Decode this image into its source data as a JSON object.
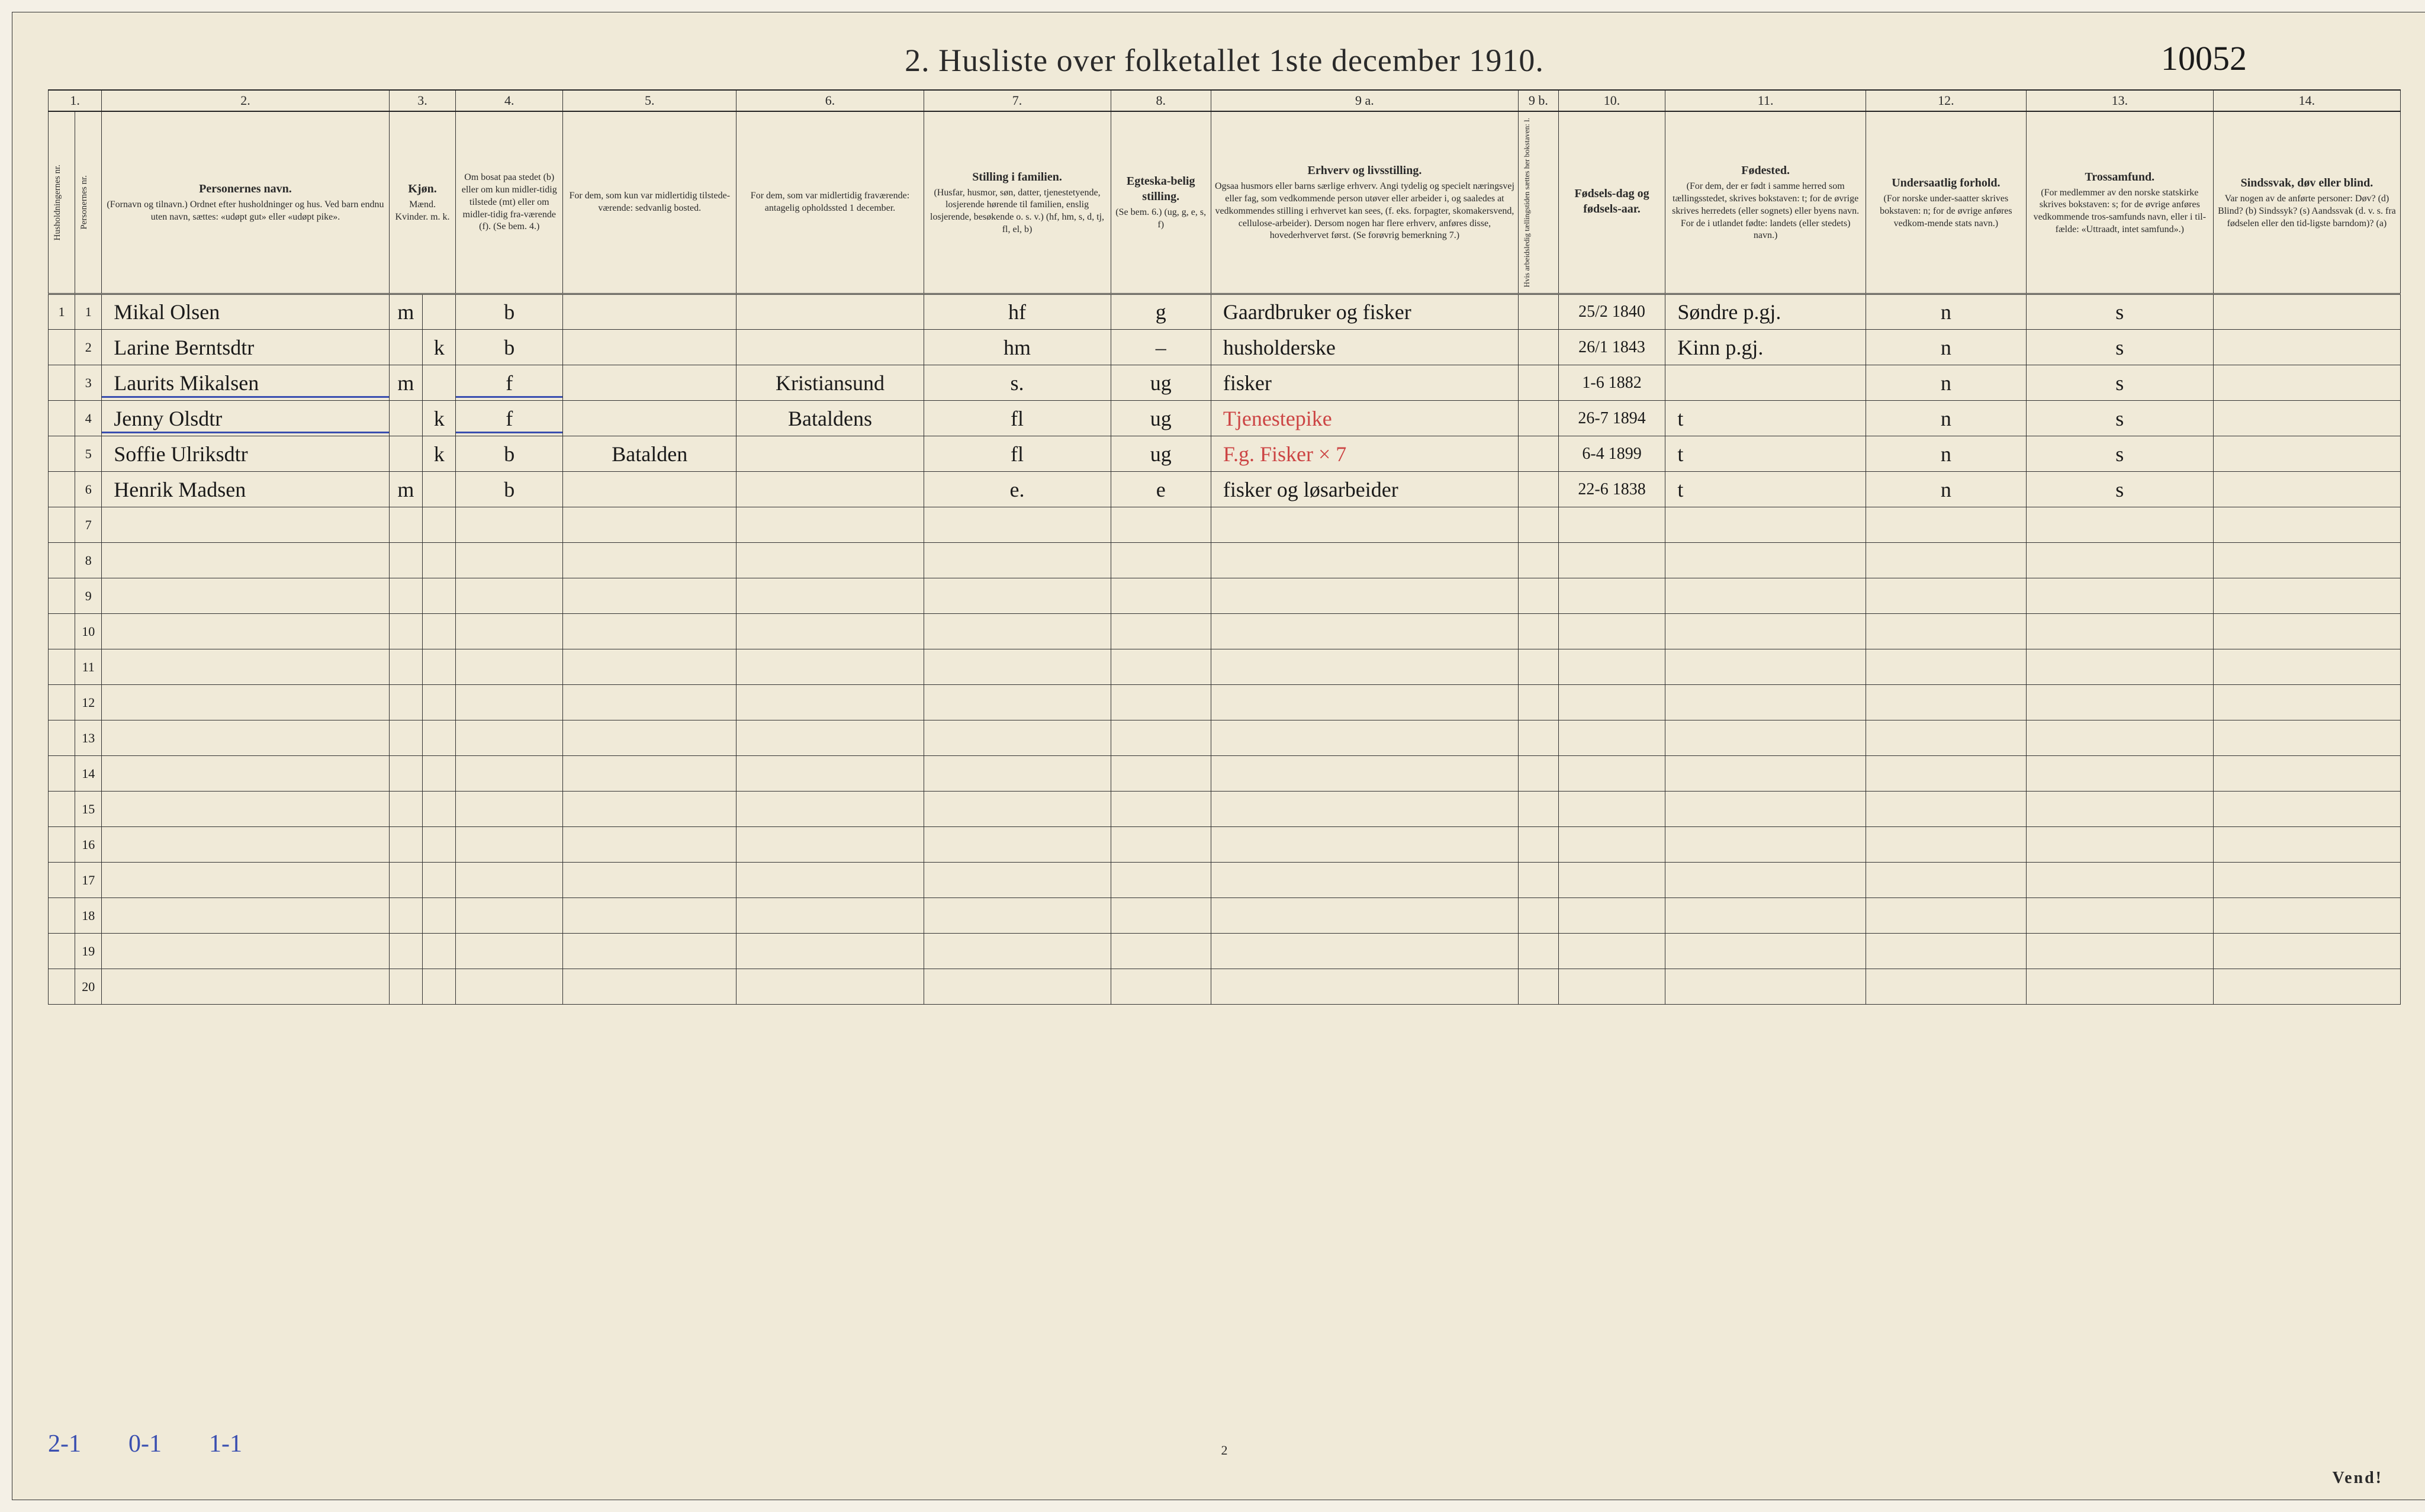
{
  "title": "2.  Husliste over folketallet 1ste december 1910.",
  "handwritten_ref": "10052",
  "colnums": [
    "1.",
    "2.",
    "3.",
    "4.",
    "5.",
    "6.",
    "7.",
    "8.",
    "9 a.",
    "9 b.",
    "10.",
    "11.",
    "12.",
    "13.",
    "14."
  ],
  "headers": {
    "1": {
      "main": "Husholdningernes nr."
    },
    "1b": {
      "main": "Personernes nr."
    },
    "2": {
      "main": "Personernes navn.",
      "sub": "(Fornavn og tilnavn.)\nOrdnet efter husholdninger og hus.\nVed barn endnu uten navn, sættes: «udøpt gut»\neller «udøpt pike»."
    },
    "3": {
      "main": "Kjøn.",
      "sub": "Mænd. Kvinder.\nm.  k."
    },
    "4": {
      "main": "",
      "sub": "Om bosat paa stedet (b) eller om kun midler-tidig tilstede (mt) eller om midler-tidig fra-værende (f). (Se bem. 4.)"
    },
    "5": {
      "main": "",
      "sub": "For dem, som kun var midlertidig tilstede-værende:\nsedvanlig bosted."
    },
    "6": {
      "main": "",
      "sub": "For dem, som var midlertidig fraværende:\nantagelig opholdssted 1 december."
    },
    "7": {
      "main": "Stilling i familien.",
      "sub": "(Husfar, husmor, søn, datter, tjenestetyende, losjerende hørende til familien, enslig losjerende, besøkende o. s. v.)\n(hf, hm, s, d, tj, fl, el, b)"
    },
    "8": {
      "main": "Egteska-belig stilling.",
      "sub": "(Se bem. 6.)\n(ug, g, e, s, f)"
    },
    "9a": {
      "main": "Erhverv og livsstilling.",
      "sub": "Ogsaa husmors eller barns særlige erhverv. Angi tydelig og specielt næringsvej eller fag, som vedkommende person utøver eller arbeider i, og saaledes at vedkommendes stilling i erhvervet kan sees, (f. eks. forpagter, skomakersvend, cellulose-arbeider). Dersom nogen har flere erhverv, anføres disse, hovederhvervet først.\n(Se forøvrig bemerkning 7.)"
    },
    "9b": {
      "main": "",
      "sub": "Hvis arbeidsledig tællingstiden sættes her bokstaven: l."
    },
    "10": {
      "main": "Fødsels-dag og fødsels-aar."
    },
    "11": {
      "main": "Fødested.",
      "sub": "(For dem, der er født i samme herred som tællingsstedet, skrives bokstaven: t; for de øvrige skrives herredets (eller sognets) eller byens navn. For de i utlandet fødte: landets (eller stedets) navn.)"
    },
    "12": {
      "main": "Undersaatlig forhold.",
      "sub": "(For norske under-saatter skrives bokstaven: n; for de øvrige anføres vedkom-mende stats navn.)"
    },
    "13": {
      "main": "Trossamfund.",
      "sub": "(For medlemmer av den norske statskirke skrives bokstaven: s; for de øvrige anføres vedkommende tros-samfunds navn, eller i til-fælde: «Uttraadt, intet samfund».)"
    },
    "14": {
      "main": "Sindssvak, døv eller blind.",
      "sub": "Var nogen av de anførte personer:\nDøv? (d)\nBlind? (b)\nSindssyk? (s)\nAandssvak (d. v. s. fra fødselen eller den tid-ligste barndom)? (a)"
    }
  },
  "rows": [
    {
      "hh": "1",
      "pn": "1",
      "name": "Mikal Olsen",
      "sex": "m",
      "res": "b",
      "col5": "",
      "col6": "",
      "fam": "hf",
      "mar": "g",
      "occ": "Gaardbruker og fisker",
      "9b": "",
      "birth": "25/2 1840",
      "place": "Søndre p.gj.",
      "nat": "n",
      "rel": "s",
      "inf": ""
    },
    {
      "hh": "",
      "pn": "2",
      "name": "Larine Berntsdtr",
      "sex": "k",
      "res": "b",
      "col5": "",
      "col6": "",
      "fam": "hm",
      "mar": "–",
      "occ": "husholderske",
      "9b": "",
      "birth": "26/1 1843",
      "place": "Kinn p.gj.",
      "nat": "n",
      "rel": "s",
      "inf": ""
    },
    {
      "hh": "",
      "pn": "3",
      "name": "Laurits Mikalsen",
      "sex": "m",
      "res": "f",
      "col5": "",
      "col6": "Kristiansund",
      "fam": "s.",
      "mar": "ug",
      "occ": "fisker",
      "9b": "",
      "birth": "1-6 1882",
      "place": "",
      "nat": "n",
      "rel": "s",
      "inf": "",
      "blue": true
    },
    {
      "hh": "",
      "pn": "4",
      "name": "Jenny Olsdtr",
      "sex": "k",
      "res": "f",
      "col5": "",
      "col6": "Bataldens",
      "fam": "fl",
      "mar": "ug",
      "occ": "Tjenestepike",
      "9b": "",
      "birth": "26-7 1894",
      "place": "t",
      "nat": "n",
      "rel": "s",
      "inf": "",
      "blue": true,
      "red_occ": true
    },
    {
      "hh": "",
      "pn": "5",
      "name": "Soffie Ulriksdtr",
      "sex": "k",
      "res": "b",
      "col5": "Batalden",
      "col6": "",
      "fam": "fl",
      "mar": "ug",
      "occ": "F.g. Fisker × 7",
      "9b": "",
      "birth": "6-4 1899",
      "place": "t",
      "nat": "n",
      "rel": "s",
      "inf": "",
      "red_occ": true
    },
    {
      "hh": "",
      "pn": "6",
      "name": "Henrik Madsen",
      "sex": "m",
      "res": "b",
      "col5": "",
      "col6": "",
      "fam": "e.",
      "mar": "e",
      "occ": "fisker og løsarbeider",
      "9b": "",
      "birth": "22-6 1838",
      "place": "t",
      "nat": "n",
      "rel": "s",
      "inf": ""
    }
  ],
  "empty_count": 14,
  "footer_notes": [
    "2-1",
    "0-1",
    "1-1"
  ],
  "page_number": "2",
  "vend": "Vend!",
  "colors": {
    "paper": "#f0ead8",
    "ink": "#1a1a1a",
    "rule": "#333333",
    "blue": "#3a4fb0",
    "red": "#c44444"
  }
}
